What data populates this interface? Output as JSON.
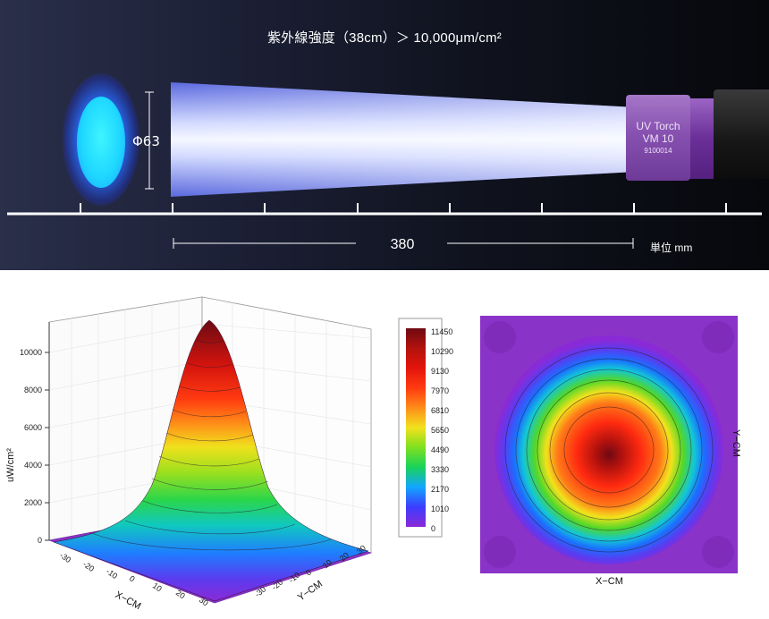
{
  "banner": {
    "headline": "紫外線強度（38cm）＞ 10,000μm/cm²",
    "spot_diameter": "Φ63",
    "distance": "380",
    "unit": "単位 mm",
    "torch": {
      "name": "UV Torch",
      "model": "VM 10",
      "serial": "9100014"
    }
  },
  "surface_plot": {
    "z_label": "uW/cm²",
    "z_ticks": [
      "0",
      "2000",
      "4000",
      "6000",
      "8000",
      "10000"
    ],
    "x_label": "X−CM",
    "y_label": "Y−CM",
    "x_ticks": [
      "-30",
      "-20",
      "-10",
      "0",
      "10",
      "20",
      "30"
    ],
    "y_ticks": [
      "-30",
      "-20",
      "-10",
      "0",
      "10",
      "20",
      "30"
    ]
  },
  "colorbar": {
    "labels": [
      "11450",
      "10290",
      "9130",
      "7970",
      "6810",
      "5650",
      "4490",
      "3330",
      "2170",
      "1010",
      "0"
    ],
    "colors": [
      "#7a0a12",
      "#b3120e",
      "#e3140c",
      "#ff3b10",
      "#ff8c1a",
      "#f2e21c",
      "#7ee020",
      "#18d25a",
      "#12a6ff",
      "#3c3cff",
      "#8a2ad6"
    ]
  },
  "heatmap": {
    "x_label": "X−CM",
    "y_label": "Y−CM"
  }
}
